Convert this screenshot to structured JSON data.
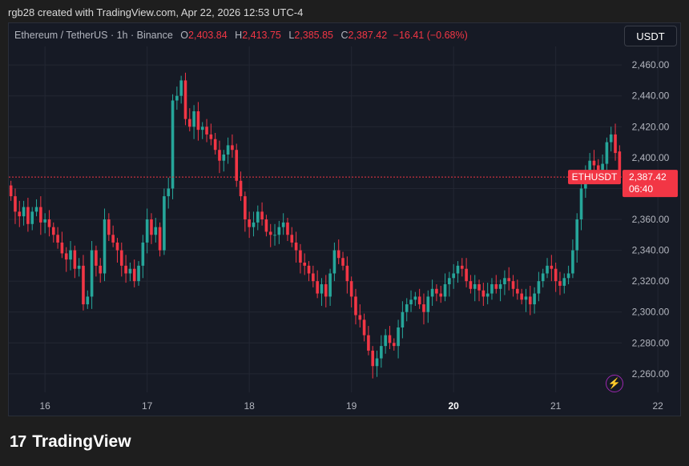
{
  "header": {
    "credit": "rgb28 created with TradingView.com, Apr 22, 2026 12:53 UTC-4"
  },
  "legend": {
    "symbol": "Ethereum / TetherUS · 1h · Binance",
    "o_label": "O",
    "o_value": "2,403.84",
    "h_label": "H",
    "h_value": "2,413.75",
    "l_label": "L",
    "l_value": "2,385.85",
    "c_label": "C",
    "c_value": "2,387.42",
    "change": "−16.41 (−0.68%)"
  },
  "currency_button": "USDT",
  "price_tag": {
    "symbol": "ETHUSDT",
    "price": "2,387.42",
    "countdown": "06:40"
  },
  "footer": {
    "brand": "TradingView",
    "logo_glyph": "17"
  },
  "icons": {
    "bolt": "lightning-icon"
  },
  "colors": {
    "up": "#26a69a",
    "down": "#f23645",
    "background": "#161a25",
    "grid": "#232733"
  },
  "chart_data": {
    "type": "candlestick",
    "title": "Ethereum / TetherUS · 1h · Binance",
    "y_ticks": [
      2260,
      2280,
      2300,
      2320,
      2340,
      2360,
      2380,
      2400,
      2420,
      2440,
      2460
    ],
    "y_tick_labels": [
      "2,260.00",
      "2,280.00",
      "2,300.00",
      "2,320.00",
      "2,340.00",
      "2,360.00",
      "2,380.00",
      "2,400.00",
      "2,420.00",
      "2,440.00",
      "2,460.00"
    ],
    "ylim": [
      2248,
      2472
    ],
    "x_tick_labels": [
      "16",
      "17",
      "18",
      "19",
      "20",
      "21",
      "22"
    ],
    "x_tick_hour_index": [
      8,
      32,
      56,
      80,
      104,
      128,
      152
    ],
    "bold_x_tick": "20",
    "last_price": 2387.42,
    "grid": true,
    "candles_close": [
      2375,
      2365,
      2362,
      2368,
      2357,
      2365,
      2368,
      2358,
      2360,
      2355,
      2350,
      2345,
      2338,
      2334,
      2340,
      2328,
      2330,
      2305,
      2310,
      2340,
      2330,
      2325,
      2360,
      2350,
      2345,
      2340,
      2330,
      2325,
      2328,
      2320,
      2330,
      2345,
      2360,
      2350,
      2355,
      2340,
      2375,
      2380,
      2437,
      2440,
      2450,
      2425,
      2420,
      2430,
      2418,
      2420,
      2415,
      2412,
      2405,
      2398,
      2402,
      2408,
      2405,
      2385,
      2375,
      2360,
      2355,
      2358,
      2365,
      2360,
      2352,
      2350,
      2350,
      2355,
      2358,
      2350,
      2345,
      2340,
      2332,
      2330,
      2325,
      2320,
      2312,
      2318,
      2310,
      2325,
      2340,
      2335,
      2330,
      2320,
      2310,
      2298,
      2295,
      2285,
      2275,
      2265,
      2270,
      2278,
      2285,
      2280,
      2278,
      2290,
      2300,
      2305,
      2308,
      2310,
      2305,
      2300,
      2310,
      2315,
      2312,
      2310,
      2318,
      2322,
      2325,
      2330,
      2328,
      2320,
      2315,
      2318,
      2314,
      2310,
      2312,
      2318,
      2315,
      2318,
      2322,
      2320,
      2315,
      2312,
      2308,
      2310,
      2305,
      2312,
      2320,
      2325,
      2330,
      2328,
      2320,
      2317,
      2322,
      2325,
      2340,
      2360,
      2380,
      2392,
      2398,
      2395,
      2392,
      2396,
      2410,
      2415,
      2403,
      2387
    ],
    "candles_open": [
      2382,
      2375,
      2365,
      2362,
      2368,
      2357,
      2365,
      2368,
      2358,
      2360,
      2355,
      2350,
      2345,
      2338,
      2334,
      2340,
      2328,
      2330,
      2305,
      2310,
      2340,
      2330,
      2325,
      2360,
      2350,
      2345,
      2340,
      2330,
      2325,
      2328,
      2320,
      2330,
      2345,
      2360,
      2350,
      2355,
      2340,
      2375,
      2380,
      2437,
      2440,
      2450,
      2425,
      2420,
      2430,
      2418,
      2420,
      2415,
      2412,
      2405,
      2398,
      2402,
      2408,
      2405,
      2385,
      2375,
      2360,
      2355,
      2358,
      2365,
      2360,
      2352,
      2350,
      2350,
      2355,
      2358,
      2350,
      2345,
      2340,
      2332,
      2330,
      2325,
      2320,
      2312,
      2318,
      2310,
      2325,
      2340,
      2335,
      2330,
      2320,
      2310,
      2298,
      2295,
      2285,
      2275,
      2265,
      2270,
      2278,
      2285,
      2280,
      2278,
      2290,
      2300,
      2305,
      2308,
      2310,
      2305,
      2300,
      2310,
      2315,
      2312,
      2310,
      2318,
      2322,
      2325,
      2330,
      2328,
      2320,
      2315,
      2318,
      2314,
      2310,
      2312,
      2318,
      2315,
      2318,
      2322,
      2320,
      2315,
      2312,
      2308,
      2310,
      2305,
      2312,
      2320,
      2325,
      2330,
      2328,
      2320,
      2317,
      2322,
      2325,
      2340,
      2360,
      2380,
      2392,
      2398,
      2395,
      2392,
      2396,
      2410,
      2415,
      2404
    ]
  }
}
